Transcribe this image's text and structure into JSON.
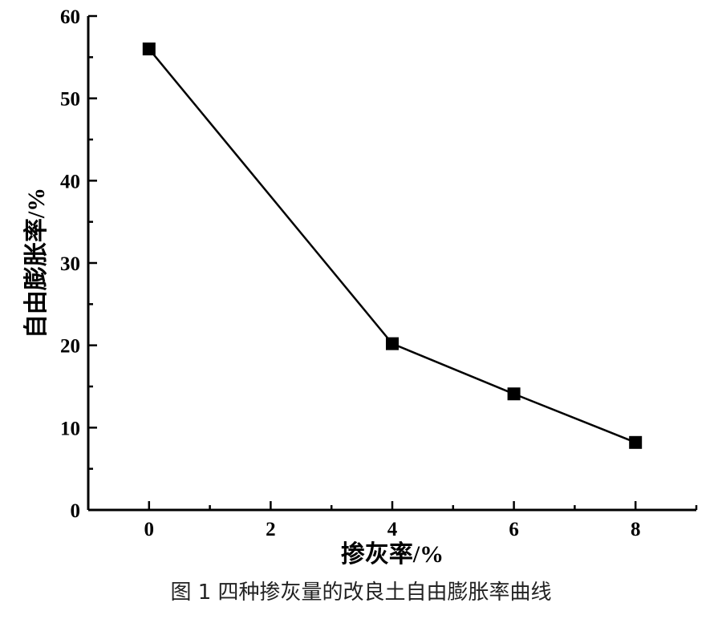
{
  "chart_data": {
    "type": "line",
    "x": [
      0,
      4,
      6,
      8
    ],
    "series": [
      {
        "values": [
          56,
          20.2,
          14.1,
          8.2
        ],
        "marker": "square",
        "color": "#000000"
      }
    ],
    "xlabel": "掺灰率/%",
    "ylabel": "自由膨胀率/%",
    "xlim": [
      -1,
      9
    ],
    "ylim": [
      0,
      60
    ],
    "x_ticks": [
      0,
      2,
      4,
      6,
      8
    ],
    "y_ticks": [
      0,
      10,
      20,
      30,
      40,
      50,
      60
    ],
    "grid": false,
    "legend": "none"
  },
  "caption": "图 1  四种掺灰量的改良土自由膨胀率曲线"
}
